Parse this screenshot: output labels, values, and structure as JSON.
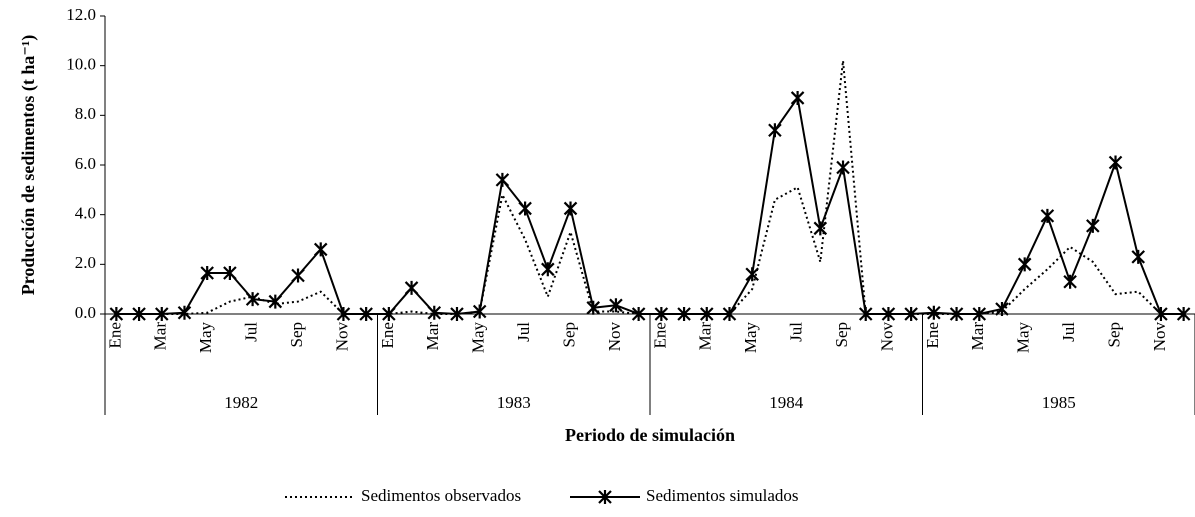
{
  "chart_data": {
    "type": "line",
    "y_label": "Producción de sedimentos (t ha⁻¹)",
    "x_label": "Periodo de simulación",
    "categories": [
      "Ene",
      null,
      "Mar",
      null,
      "May",
      null,
      "Jul",
      null,
      "Sep",
      null,
      "Nov",
      null,
      "Ene",
      null,
      "Mar",
      null,
      "May",
      null,
      "Jul",
      null,
      "Sep",
      null,
      "Nov",
      null,
      "Ene",
      null,
      "Mar",
      null,
      "May",
      null,
      "Jul",
      null,
      "Sep",
      null,
      "Nov",
      null,
      "Ene",
      null,
      "Mar",
      null,
      "May",
      null,
      "Jul",
      null,
      "Sep",
      null,
      "Nov",
      null
    ],
    "years": [
      "1982",
      "1983",
      "1984",
      "1985"
    ],
    "series": [
      {
        "name": "Sedimentos observados",
        "color": "#000000",
        "dash": "dotted",
        "marker": false,
        "values": [
          0,
          0,
          0,
          0,
          0.05,
          0.5,
          0.7,
          0.4,
          0.5,
          0.9,
          0,
          0,
          0,
          0.1,
          0,
          0,
          0.1,
          4.8,
          3.0,
          0.7,
          3.3,
          0.1,
          0.1,
          0,
          0,
          0,
          0,
          0,
          1.0,
          4.6,
          5.1,
          2.1,
          10.2,
          0,
          0,
          0,
          0,
          0,
          0,
          0.1,
          1.0,
          1.8,
          2.7,
          2.1,
          0.8,
          0.9,
          0,
          0
        ]
      },
      {
        "name": "Sedimentos simulados",
        "color": "#000000",
        "dash": "solid",
        "marker": true,
        "values": [
          0,
          0,
          0,
          0.05,
          1.65,
          1.65,
          0.6,
          0.5,
          1.55,
          2.6,
          0,
          0,
          0,
          1.05,
          0.05,
          0,
          0.1,
          5.4,
          4.25,
          1.8,
          4.25,
          0.25,
          0.35,
          0,
          0,
          0,
          0,
          0,
          1.6,
          7.4,
          8.7,
          3.45,
          5.9,
          0,
          0,
          0,
          0.05,
          0,
          0,
          0.2,
          2.0,
          3.95,
          1.3,
          3.55,
          6.1,
          2.3,
          0,
          0
        ]
      }
    ],
    "ylim": [
      0,
      12
    ],
    "yticks": [
      {
        "value": 0,
        "label": "0.0"
      },
      {
        "value": 2,
        "label": "2.0"
      },
      {
        "value": 4,
        "label": "4.0"
      },
      {
        "value": 6,
        "label": "6.0"
      },
      {
        "value": 8,
        "label": "8.0"
      },
      {
        "value": 10,
        "label": "10.0"
      },
      {
        "value": 12,
        "label": "12.0"
      }
    ],
    "grid": false
  }
}
